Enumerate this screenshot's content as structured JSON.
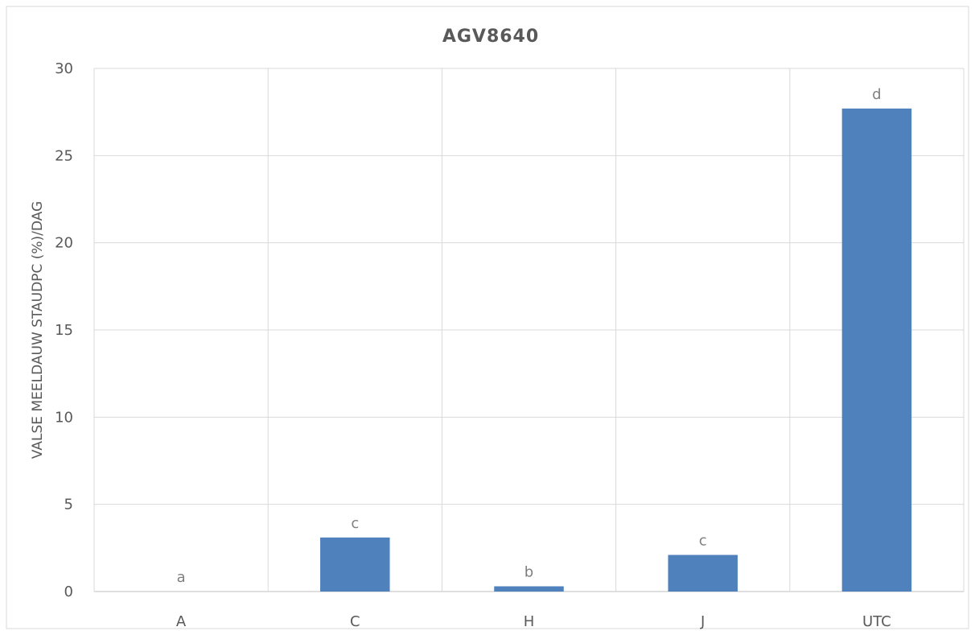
{
  "chart_data": {
    "type": "bar",
    "title": "AGV8640",
    "xlabel": "",
    "ylabel": "VALSE MEELDAUW STAUDPC (%)/DAG",
    "categories": [
      "A",
      "C",
      "H",
      "J",
      "UTC"
    ],
    "values": [
      0,
      3.1,
      0.3,
      2.1,
      27.7
    ],
    "data_labels": [
      "a",
      "c",
      "b",
      "c",
      "d"
    ],
    "ylim": [
      0,
      30
    ],
    "yticks": [
      0,
      5,
      10,
      15,
      20,
      25,
      30
    ],
    "grid": true,
    "legend": "none",
    "bar_color": "#4f81bd"
  }
}
